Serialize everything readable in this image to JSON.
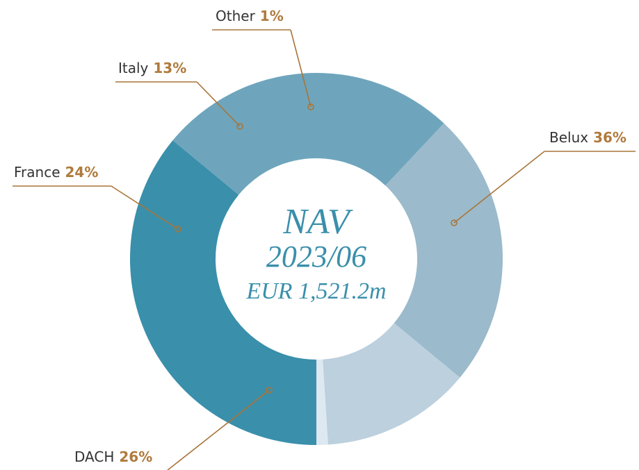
{
  "chart_data": {
    "type": "donut",
    "categories": [
      "Belux",
      "DACH",
      "France",
      "Italy",
      "Other"
    ],
    "values": [
      36,
      26,
      24,
      13,
      1
    ],
    "value_labels": [
      "36%",
      "26%",
      "24%",
      "13%",
      "1%"
    ],
    "colors": [
      "#3a8fab",
      "#6ea5bc",
      "#9bbacb",
      "#bcd0de",
      "#dde8f0"
    ],
    "center_text": [
      "NAV",
      "2023/06",
      "EUR 1,521.2m"
    ]
  }
}
